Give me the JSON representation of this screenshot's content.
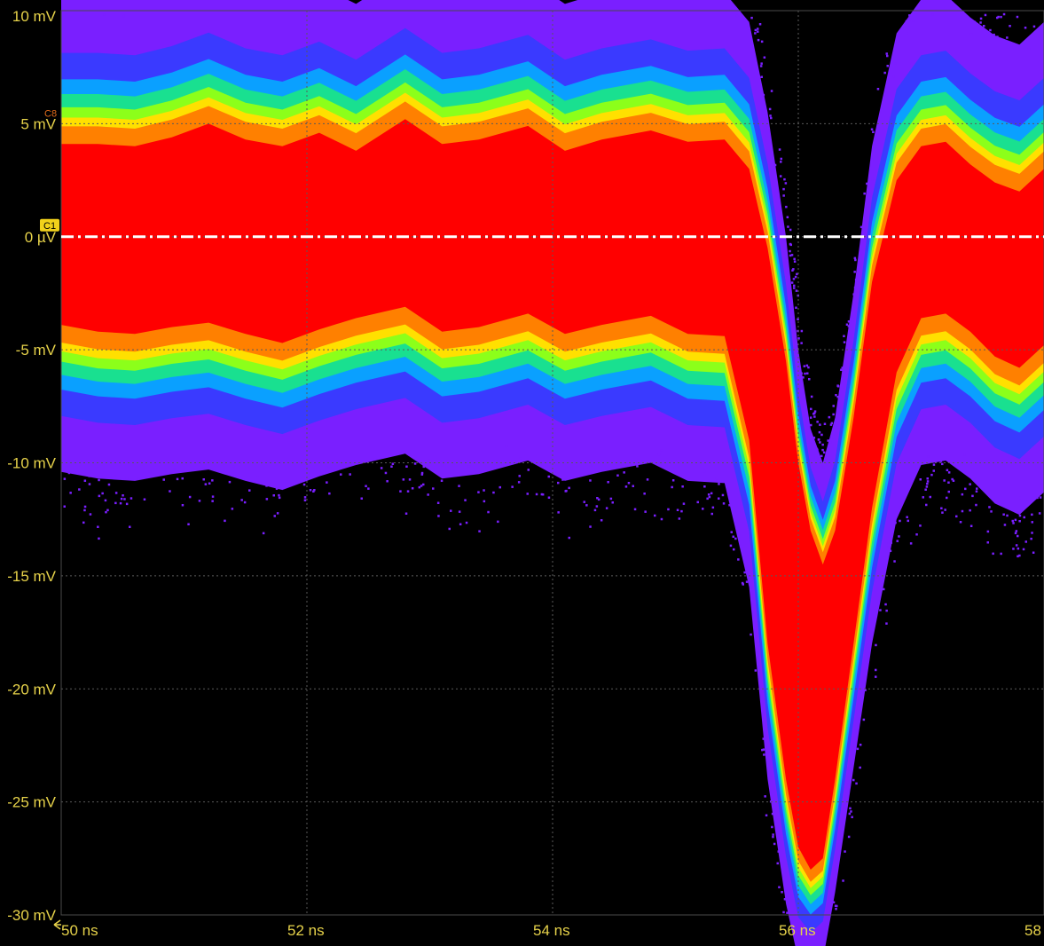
{
  "chart_data": {
    "type": "line",
    "title": "",
    "x": {
      "min": 50,
      "max": 58,
      "unit": "ns",
      "tick_values": [
        50,
        52,
        54,
        56,
        58
      ],
      "tick_labels": [
        "50 ns",
        "52 ns",
        "54 ns",
        "56 ns",
        "58 ns"
      ]
    },
    "y": {
      "min": -30,
      "max": 10,
      "unit": "mV",
      "tick_values": [
        10,
        5,
        0,
        -5,
        -10,
        -15,
        -20,
        -25,
        -30
      ],
      "tick_labels": [
        "10 mV",
        "5 mV",
        "0 µV",
        "-5 mV",
        "-10 mV",
        "-15 mV",
        "-20 mV",
        "-25 mV",
        "-30 mV"
      ]
    },
    "grid": true,
    "display": "persistence color-graded",
    "reference_level": {
      "label": "C1",
      "value": 0
    },
    "trace_marker": {
      "label": "C8",
      "value": 5
    },
    "series": [
      {
        "x": [
          50.0,
          50.3,
          50.6,
          50.9,
          51.2,
          51.5,
          51.8,
          52.1,
          52.4,
          52.8,
          53.1,
          53.4,
          53.8,
          54.1,
          54.4,
          54.8,
          55.1,
          55.4,
          55.6,
          55.75,
          55.9,
          56.0,
          56.1,
          56.2,
          56.3,
          56.45,
          56.6,
          56.8,
          57.0,
          57.2,
          57.4,
          57.6,
          57.8,
          58.0
        ],
        "upper": [
          4.1,
          4.1,
          4.0,
          4.4,
          5.0,
          4.3,
          4.0,
          4.6,
          3.8,
          5.2,
          4.1,
          4.3,
          4.9,
          3.8,
          4.3,
          4.7,
          4.2,
          4.3,
          3.0,
          -0.5,
          -5.5,
          -10.0,
          -13.0,
          -14.5,
          -13.0,
          -8.0,
          -2.0,
          2.5,
          4.0,
          4.2,
          3.2,
          2.4,
          2.0,
          3.0
        ],
        "lower": [
          -3.9,
          -4.2,
          -4.3,
          -4.0,
          -3.8,
          -4.3,
          -4.7,
          -4.1,
          -3.6,
          -3.1,
          -4.2,
          -4.0,
          -3.4,
          -4.3,
          -3.9,
          -3.5,
          -4.3,
          -4.4,
          -9.0,
          -18.0,
          -24.0,
          -27.0,
          -28.0,
          -27.5,
          -24.0,
          -18.0,
          -12.0,
          -6.0,
          -3.6,
          -3.4,
          -4.2,
          -5.3,
          -5.8,
          -4.8
        ],
        "spread": [
          6.5,
          6.5,
          6.5,
          6.5,
          6.5,
          6.5,
          6.5,
          6.5,
          6.5,
          6.5,
          6.5,
          6.5,
          6.5,
          6.5,
          6.5,
          6.5,
          6.5,
          6.5,
          6.5,
          6.0,
          5.5,
          5.0,
          4.5,
          4.5,
          5.0,
          5.5,
          6.0,
          6.5,
          6.5,
          6.5,
          6.5,
          6.5,
          6.5,
          6.5
        ]
      }
    ],
    "colors": {
      "background": "#000000",
      "axis_labels": "#e6d24a",
      "grid": "#5a5a5a",
      "reference_line": "#ffffff",
      "marker_C1": "#f2d21b",
      "marker_C8": "#e06a1a",
      "density": [
        "#7a1fff",
        "#3a3aff",
        "#0aa0ff",
        "#19e090",
        "#8cff1a",
        "#ffe000",
        "#ff8000",
        "#ff0000"
      ]
    }
  }
}
